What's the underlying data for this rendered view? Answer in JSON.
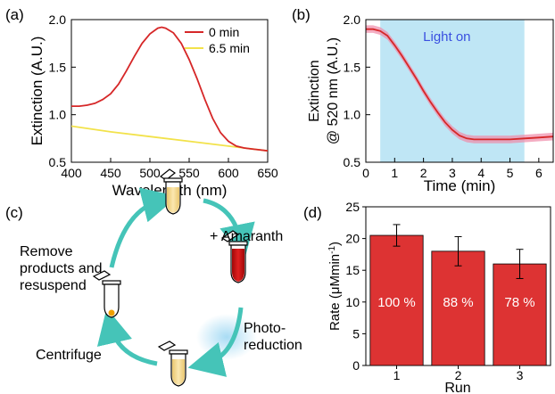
{
  "chart_data": [
    {
      "panel": "(a)",
      "type": "line",
      "xlabel": "Wavelength (nm)",
      "ylabel": "Extinction (A.U.)",
      "xlim": [
        400,
        650
      ],
      "ylim": [
        0.5,
        2.0
      ],
      "xticks": [
        "400",
        "450",
        "500",
        "550",
        "600",
        "650"
      ],
      "yticks": [
        "0.5",
        "1.0",
        "1.5",
        "2.0"
      ],
      "legend_position": "top-right",
      "series": [
        {
          "name": "0 min",
          "color": "#d62728",
          "x": [
            400,
            410,
            420,
            430,
            440,
            450,
            460,
            470,
            480,
            490,
            500,
            510,
            515,
            520,
            530,
            540,
            550,
            560,
            570,
            580,
            590,
            600,
            610,
            620,
            630,
            640,
            650
          ],
          "y": [
            1.09,
            1.09,
            1.1,
            1.12,
            1.16,
            1.22,
            1.32,
            1.46,
            1.61,
            1.75,
            1.85,
            1.91,
            1.92,
            1.91,
            1.86,
            1.75,
            1.58,
            1.38,
            1.16,
            0.96,
            0.81,
            0.72,
            0.67,
            0.65,
            0.64,
            0.63,
            0.62
          ]
        },
        {
          "name": "6.5 min",
          "color": "#f2e24a",
          "x": [
            400,
            450,
            500,
            550,
            600,
            650
          ],
          "y": [
            0.88,
            0.82,
            0.77,
            0.72,
            0.67,
            0.62
          ]
        }
      ]
    },
    {
      "panel": "(b)",
      "type": "line",
      "xlabel": "Time (min)",
      "ylabel_line1": "Extinction",
      "ylabel_line2": "@ 520 nm (A.U.)",
      "xlim": [
        0,
        6.5
      ],
      "ylim": [
        0.5,
        2.0
      ],
      "xticks": [
        "0",
        "1",
        "2",
        "3",
        "4",
        "5",
        "6"
      ],
      "yticks": [
        "0.5",
        "1.0",
        "1.5",
        "2.0"
      ],
      "annotation": "Light on",
      "light_on_range": [
        0.5,
        5.5
      ],
      "shade_color": "#bfe6f5",
      "series": [
        {
          "color": "#d62728",
          "x": [
            0,
            0.25,
            0.5,
            0.75,
            1.0,
            1.25,
            1.5,
            1.75,
            2.0,
            2.25,
            2.5,
            2.75,
            3.0,
            3.25,
            3.5,
            3.75,
            4.0,
            4.5,
            5.0,
            5.5,
            6.0,
            6.5
          ],
          "y": [
            1.9,
            1.9,
            1.88,
            1.83,
            1.73,
            1.62,
            1.5,
            1.38,
            1.25,
            1.13,
            1.02,
            0.92,
            0.84,
            0.78,
            0.75,
            0.74,
            0.74,
            0.74,
            0.74,
            0.75,
            0.76,
            0.77
          ]
        }
      ]
    },
    {
      "panel": "(d)",
      "type": "bar",
      "xlabel": "Run",
      "ylabel": "Rate (μMmin",
      "ylabel_sup": "-1",
      "ylabel_end": ")",
      "ylim": [
        0,
        25
      ],
      "yticks": [
        "0",
        "5",
        "10",
        "15",
        "20",
        "25"
      ],
      "categories": [
        "1",
        "2",
        "3"
      ],
      "values": [
        20.5,
        18.0,
        16.0
      ],
      "errors": [
        1.7,
        2.3,
        2.3
      ],
      "bar_labels": [
        "100 %",
        "88 %",
        "78 %"
      ],
      "bar_color": "#dd3333"
    }
  ],
  "diagram": {
    "panel": "(c)",
    "labels": {
      "remove": [
        "Remove",
        "products and",
        "resuspend"
      ],
      "add": "+ Amaranth",
      "photo": [
        "Photo-",
        "reduction"
      ],
      "centrifuge": "Centrifuge"
    },
    "colors": {
      "arrow": "#45c4b8",
      "glow": "#8fd0ee",
      "yellow_liquid": "#f2d489",
      "red_liquid": "#cc1010",
      "pellet": "#f0a000"
    }
  }
}
